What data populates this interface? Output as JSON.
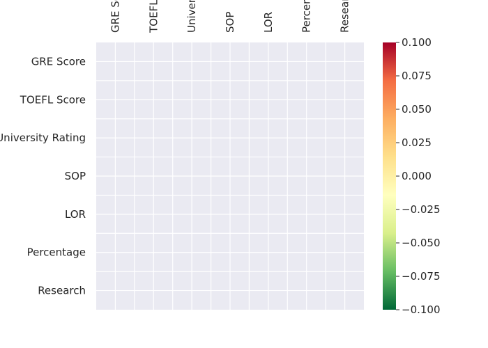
{
  "chart_data": {
    "type": "heatmap",
    "x_categories": [
      "GRE Score",
      "TOEFL Score",
      "University Rating",
      "SOP",
      "LOR ",
      "Percentage",
      "Research"
    ],
    "y_categories": [
      "GRE Score",
      "TOEFL Score",
      "University Rating",
      "SOP",
      "LOR ",
      "Percentage",
      "Research"
    ],
    "values": [],
    "colormap": "RdYlGn_r",
    "colorbar": {
      "vmin": -0.1,
      "vmax": 0.1,
      "ticks": [
        0.1,
        0.075,
        0.05,
        0.025,
        0.0,
        -0.025,
        -0.05,
        -0.075,
        -0.1
      ],
      "tick_labels": [
        "0.100",
        "0.075",
        "0.050",
        "0.025",
        "0.000",
        "−0.025",
        "−0.050",
        "−0.075",
        "−0.100"
      ],
      "stops": [
        "#006837",
        "#66bd63",
        "#d9ef8b",
        "#ffffbf",
        "#fee08b",
        "#fdae61",
        "#f46d43",
        "#a50026"
      ]
    },
    "empty_cell_color": "#eaeaf2",
    "gridline_color": "#ffffff",
    "grid": true,
    "title": "",
    "xlabel": "",
    "ylabel": ""
  }
}
